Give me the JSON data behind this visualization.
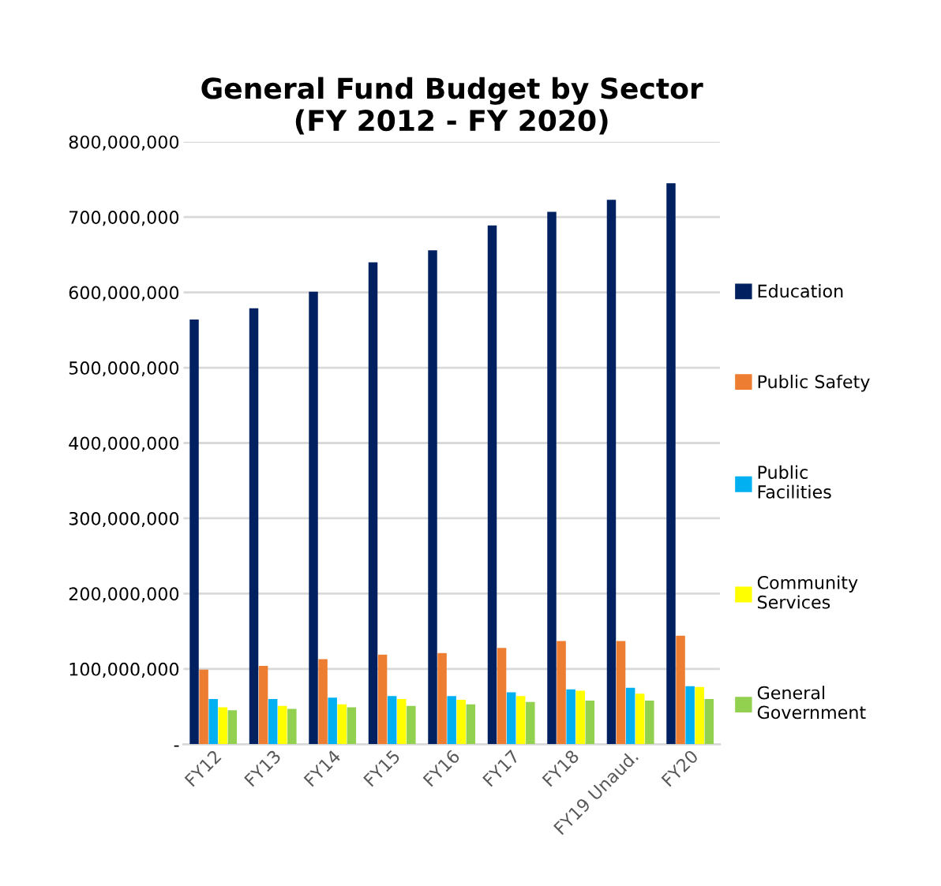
{
  "chart_data": {
    "type": "bar",
    "title": "General Fund Budget by Sector\n(FY 2012 - FY 2020)",
    "categories": [
      "FY12",
      "FY13",
      "FY14",
      "FY15",
      "FY16",
      "FY17",
      "FY18",
      "FY19 Unaud.",
      "FY20"
    ],
    "series": [
      {
        "name": "Education",
        "color": "#002060",
        "values": [
          564000000,
          579000000,
          601000000,
          640000000,
          656000000,
          689000000,
          707000000,
          723000000,
          745000000
        ]
      },
      {
        "name": "Public Safety",
        "color": "#ed7d31",
        "values": [
          99000000,
          104000000,
          113000000,
          119000000,
          121000000,
          128000000,
          137000000,
          137000000,
          144000000
        ]
      },
      {
        "name": "Public Facilities",
        "color": "#00b0f0",
        "values": [
          60000000,
          60000000,
          62000000,
          64000000,
          64000000,
          69000000,
          73000000,
          75000000,
          77000000
        ]
      },
      {
        "name": "Community Services",
        "color": "#ffff00",
        "values": [
          49000000,
          51000000,
          53000000,
          60000000,
          59000000,
          64000000,
          71000000,
          67000000,
          76000000
        ]
      },
      {
        "name": "General Government",
        "color": "#92d050",
        "values": [
          45000000,
          47000000,
          49000000,
          51000000,
          53000000,
          56000000,
          58000000,
          58000000,
          60000000
        ]
      }
    ],
    "ylim": [
      0,
      800000000
    ],
    "yticks": [
      {
        "value": 0,
        "label": "-"
      },
      {
        "value": 100000000,
        "label": "100,000,000"
      },
      {
        "value": 200000000,
        "label": "200,000,000"
      },
      {
        "value": 300000000,
        "label": "300,000,000"
      },
      {
        "value": 400000000,
        "label": "400,000,000"
      },
      {
        "value": 500000000,
        "label": "500,000,000"
      },
      {
        "value": 600000000,
        "label": "600,000,000"
      },
      {
        "value": 700000000,
        "label": "700,000,000"
      },
      {
        "value": 800000000,
        "label": "800,000,000"
      }
    ],
    "grid": "y",
    "legend": "right"
  }
}
